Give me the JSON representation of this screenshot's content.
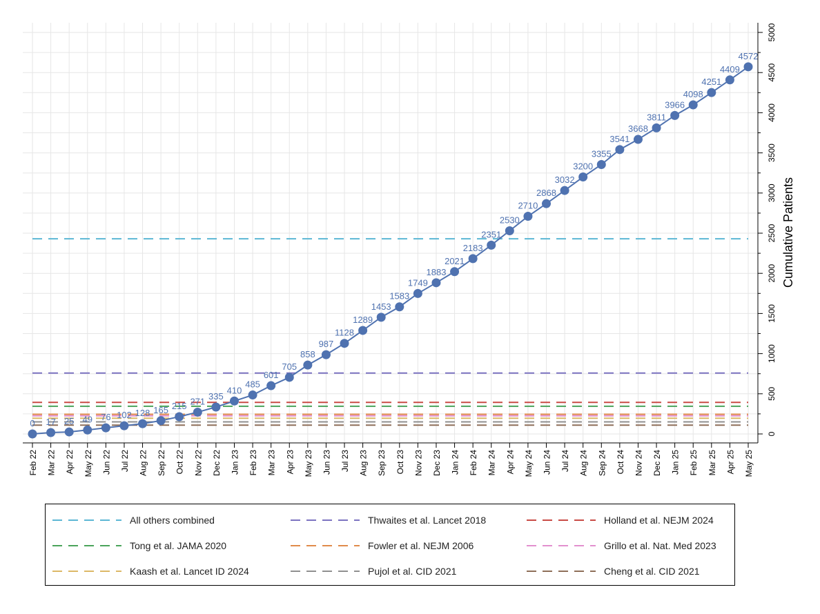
{
  "chart_data": {
    "type": "line",
    "title": "",
    "xlabel": "",
    "ylabel": "Cumulative Patients",
    "ylim": [
      0,
      5000
    ],
    "y_ticks": [
      0,
      500,
      1000,
      1500,
      2000,
      2500,
      3000,
      3500,
      4000,
      4500,
      5000
    ],
    "y_axis_position": "right",
    "grid": true,
    "legend_position": "bottom",
    "categories": [
      "Feb 22",
      "Mar 22",
      "Apr 22",
      "May 22",
      "Jun 22",
      "Jul 22",
      "Aug 22",
      "Sep 22",
      "Oct 22",
      "Nov 22",
      "Dec 22",
      "Jan 23",
      "Feb 23",
      "Mar 23",
      "Apr 23",
      "May 23",
      "Jun 23",
      "Jul 23",
      "Aug 23",
      "Sep 23",
      "Oct 23",
      "Nov 23",
      "Dec 23",
      "Jan 24",
      "Feb 24",
      "Mar 24",
      "Apr 24",
      "May 24",
      "Jun 24",
      "Jul 24",
      "Aug 24",
      "Sep 24",
      "Oct 24",
      "Nov 24",
      "Dec 24",
      "Jan 25",
      "Feb 25",
      "Mar 25",
      "Apr 25",
      "May 25"
    ],
    "series": [
      {
        "color": "#4f72b0",
        "values": [
          0,
          17,
          25,
          49,
          76,
          102,
          128,
          165,
          215,
          271,
          335,
          410,
          485,
          601,
          705,
          858,
          987,
          1128,
          1289,
          1453,
          1583,
          1749,
          1883,
          2021,
          2183,
          2351,
          2530,
          2710,
          2868,
          3032,
          3200,
          3355,
          3541,
          3668,
          3811,
          3966,
          4098,
          4251,
          4409,
          4572
        ]
      }
    ],
    "reference_lines": [
      {
        "name": "All others combined",
        "value": 2430,
        "color": "#5bb7d4"
      },
      {
        "name": "Thwaites et al. Lancet 2018",
        "value": 758,
        "color": "#7b72c0"
      },
      {
        "name": "Holland et al. NEJM 2024",
        "value": 393,
        "color": "#c84a44"
      },
      {
        "name": "Tong et al. JAMA 2020",
        "value": 345,
        "color": "#4aa35a"
      },
      {
        "name": "Fowler et al. NEJM 2006",
        "value": 245,
        "color": "#e08a4a"
      },
      {
        "name": "Grillo et al. Nat. Med 2023",
        "value": 225,
        "color": "#e28fce"
      },
      {
        "name": "Kaash et al. Lancet ID 2024",
        "value": 195,
        "color": "#dcb866"
      },
      {
        "name": "Pujol et al. CID 2021",
        "value": 150,
        "color": "#8f8f8f"
      },
      {
        "name": "Cheng et al. CID 2021",
        "value": 110,
        "color": "#8d6e58"
      }
    ]
  }
}
